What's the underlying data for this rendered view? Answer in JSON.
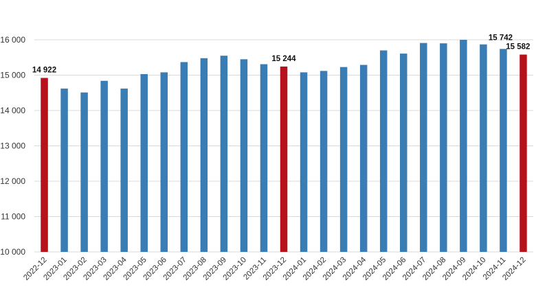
{
  "chart_data": {
    "type": "bar",
    "title": "",
    "xlabel": "",
    "ylabel": "",
    "ylim": [
      10000,
      16000
    ],
    "yticks": [
      10000,
      11000,
      12000,
      13000,
      14000,
      15000,
      16000
    ],
    "ytick_labels": [
      "10 000",
      "11 000",
      "12 000",
      "13 000",
      "14 000",
      "15 000",
      "16 000"
    ],
    "grid": true,
    "legend": "none",
    "colors": {
      "default": "#3a7db5",
      "highlight": "#b5121b",
      "grid": "#d9d9d9"
    },
    "categories": [
      "2022-12",
      "2023-01",
      "2023-02",
      "2023-03",
      "2023-04",
      "2023-05",
      "2023-06",
      "2023-07",
      "2023-08",
      "2023-09",
      "2023-10",
      "2023-11",
      "2023-12",
      "2024-01",
      "2024-02",
      "2024-03",
      "2024-04",
      "2024-05",
      "2024-06",
      "2024-07",
      "2024-08",
      "2024-09",
      "2024-10",
      "2024-11",
      "2024-12"
    ],
    "values": [
      14922,
      14620,
      14510,
      14840,
      14620,
      15030,
      15080,
      15370,
      15480,
      15550,
      15450,
      15310,
      15244,
      15080,
      15120,
      15230,
      15290,
      15700,
      15610,
      15910,
      15900,
      16000,
      15870,
      15742,
      15582
    ],
    "highlighted": [
      0,
      12,
      24
    ],
    "data_labels": [
      {
        "index": 0,
        "text": "14 922"
      },
      {
        "index": 12,
        "text": "15 244"
      },
      {
        "index": 23,
        "text": "15 742"
      },
      {
        "index": 24,
        "text": "15 582"
      }
    ]
  }
}
